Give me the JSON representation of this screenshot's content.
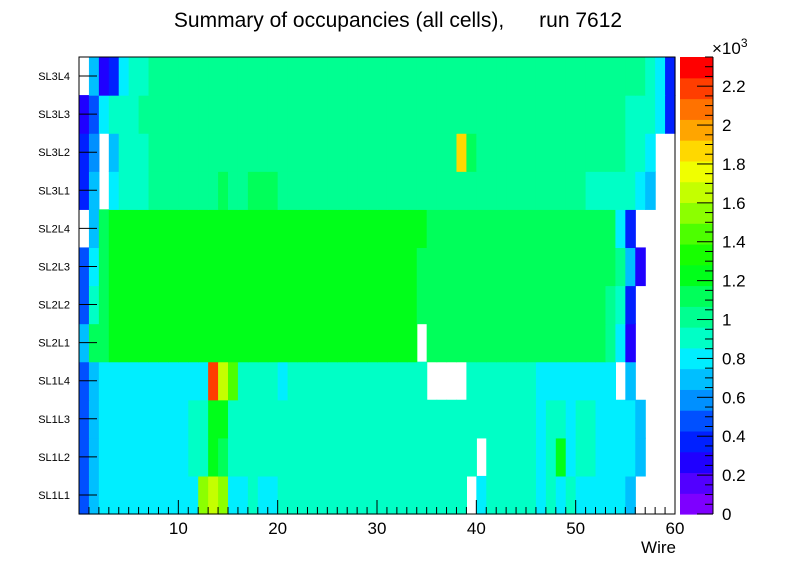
{
  "chart_data": {
    "type": "heatmap",
    "title": "Summary of occupancies (all cells),      run 7612",
    "xlabel": "Wire",
    "ylabel": "",
    "xlim": [
      0,
      60
    ],
    "x_ticks": [
      10,
      20,
      30,
      40,
      50,
      60
    ],
    "y_categories": [
      "SL1L1",
      "SL1L2",
      "SL1L3",
      "SL1L4",
      "SL2L1",
      "SL2L2",
      "SL2L3",
      "SL2L4",
      "SL3L1",
      "SL3L2",
      "SL3L3",
      "SL3L4"
    ],
    "colorbar": {
      "range": [
        0,
        2350
      ],
      "exponent_label": "×10",
      "exponent_power": "3",
      "tick_labels": [
        "0",
        "0.2",
        "0.4",
        "0.6",
        "0.8",
        "1",
        "1.2",
        "1.4",
        "1.6",
        "1.8",
        "2",
        "2.2"
      ],
      "tick_values": [
        0,
        200,
        400,
        600,
        800,
        1000,
        1200,
        1400,
        1600,
        1800,
        2000,
        2200
      ]
    },
    "values": [
      [
        450,
        700,
        780,
        780,
        800,
        800,
        800,
        850,
        850,
        850,
        850,
        800,
        1550,
        1650,
        1500,
        850,
        850,
        900,
        850,
        850,
        900,
        900,
        900,
        900,
        900,
        900,
        900,
        900,
        900,
        900,
        900,
        900,
        900,
        900,
        900,
        900,
        900,
        900,
        900,
        0,
        850,
        900,
        900,
        900,
        900,
        900,
        850,
        900,
        850,
        900,
        850,
        800,
        780,
        780,
        780,
        650,
        0,
        0,
        0,
        0
      ],
      [
        450,
        700,
        780,
        780,
        800,
        800,
        800,
        850,
        850,
        850,
        850,
        900,
        900,
        1200,
        1150,
        900,
        900,
        950,
        900,
        900,
        950,
        900,
        900,
        900,
        900,
        900,
        900,
        900,
        900,
        900,
        900,
        900,
        900,
        900,
        900,
        900,
        900,
        900,
        900,
        900,
        0,
        900,
        900,
        900,
        900,
        900,
        850,
        900,
        1200,
        850,
        900,
        900,
        850,
        850,
        800,
        800,
        700,
        0,
        0,
        0
      ],
      [
        450,
        700,
        780,
        780,
        800,
        800,
        800,
        850,
        850,
        850,
        850,
        900,
        950,
        1200,
        1250,
        900,
        900,
        950,
        900,
        900,
        950,
        900,
        900,
        900,
        900,
        900,
        900,
        900,
        900,
        900,
        900,
        900,
        900,
        900,
        900,
        900,
        900,
        900,
        900,
        900,
        900,
        900,
        900,
        900,
        900,
        900,
        850,
        900,
        900,
        850,
        900,
        900,
        850,
        850,
        800,
        800,
        700,
        0,
        0,
        0
      ],
      [
        450,
        650,
        780,
        780,
        800,
        850,
        850,
        850,
        850,
        850,
        850,
        850,
        850,
        2200,
        1650,
        1400,
        950,
        950,
        900,
        900,
        850,
        900,
        900,
        900,
        900,
        900,
        900,
        900,
        900,
        900,
        900,
        900,
        900,
        900,
        900,
        0,
        0,
        0,
        0,
        900,
        900,
        900,
        900,
        900,
        900,
        900,
        850,
        800,
        800,
        800,
        800,
        800,
        800,
        850,
        0,
        700,
        0,
        0,
        0,
        0
      ],
      [
        700,
        1100,
        1150,
        1200,
        1200,
        1200,
        1200,
        1200,
        1200,
        1200,
        1200,
        1200,
        1200,
        1200,
        1200,
        1200,
        1200,
        1200,
        1200,
        1200,
        1200,
        1200,
        1200,
        1200,
        1200,
        1200,
        1200,
        1200,
        1200,
        1200,
        1200,
        1200,
        1200,
        1200,
        0,
        1150,
        1150,
        1150,
        1150,
        1150,
        1150,
        1150,
        1150,
        1150,
        1150,
        1150,
        1150,
        1150,
        1150,
        1150,
        1150,
        1150,
        1150,
        1050,
        800,
        300,
        0,
        0,
        0,
        0
      ],
      [
        500,
        950,
        1150,
        1200,
        1200,
        1200,
        1200,
        1200,
        1200,
        1200,
        1200,
        1200,
        1200,
        1200,
        1200,
        1200,
        1200,
        1200,
        1200,
        1200,
        1200,
        1200,
        1200,
        1200,
        1200,
        1200,
        1200,
        1200,
        1200,
        1200,
        1200,
        1200,
        1200,
        1200,
        1100,
        1150,
        1150,
        1150,
        1150,
        1150,
        1150,
        1150,
        1150,
        1150,
        1150,
        1150,
        1150,
        1150,
        1150,
        1150,
        1150,
        1150,
        1150,
        1050,
        900,
        350,
        0,
        0,
        0,
        0
      ],
      [
        450,
        850,
        1150,
        1200,
        1200,
        1200,
        1200,
        1200,
        1200,
        1200,
        1200,
        1200,
        1200,
        1200,
        1200,
        1200,
        1200,
        1200,
        1200,
        1200,
        1200,
        1200,
        1200,
        1200,
        1200,
        1200,
        1200,
        1200,
        1200,
        1200,
        1200,
        1200,
        1200,
        1200,
        1100,
        1150,
        1150,
        1150,
        1150,
        1150,
        1150,
        1150,
        1150,
        1150,
        1150,
        1150,
        1150,
        1150,
        1150,
        1150,
        1150,
        1150,
        1150,
        1100,
        1050,
        650,
        300,
        0,
        0,
        0
      ],
      [
        0,
        700,
        1150,
        1200,
        1200,
        1200,
        1200,
        1200,
        1200,
        1200,
        1200,
        1200,
        1200,
        1200,
        1200,
        1200,
        1200,
        1200,
        1200,
        1200,
        1200,
        1200,
        1200,
        1200,
        1200,
        1200,
        1200,
        1200,
        1200,
        1200,
        1200,
        1200,
        1200,
        1200,
        1200,
        1150,
        1150,
        1150,
        1150,
        1150,
        1150,
        1150,
        1150,
        1150,
        1150,
        1150,
        1150,
        1150,
        1150,
        1150,
        1150,
        1150,
        1150,
        1150,
        850,
        350,
        0,
        0,
        0,
        0
      ],
      [
        350,
        700,
        0,
        850,
        900,
        900,
        950,
        1000,
        1000,
        1000,
        1000,
        1000,
        1050,
        1050,
        1100,
        1000,
        1000,
        1100,
        1100,
        1150,
        1050,
        1000,
        1000,
        1000,
        1000,
        1000,
        1000,
        1000,
        1000,
        1000,
        1000,
        1000,
        1000,
        1000,
        1000,
        1050,
        1050,
        1000,
        1000,
        1000,
        1000,
        1000,
        1000,
        1000,
        1000,
        1000,
        1000,
        1000,
        1000,
        1000,
        1000,
        950,
        950,
        950,
        950,
        900,
        800,
        650,
        0,
        0
      ],
      [
        350,
        600,
        0,
        700,
        900,
        900,
        950,
        1000,
        1050,
        1000,
        1050,
        1000,
        1000,
        1000,
        1000,
        1000,
        1000,
        1000,
        1000,
        1000,
        1000,
        1000,
        1000,
        1000,
        1000,
        1000,
        1000,
        1000,
        1000,
        1000,
        1000,
        1000,
        1000,
        1000,
        1000,
        1000,
        1000,
        1000,
        1850,
        1100,
        1000,
        1000,
        1000,
        1000,
        1000,
        1000,
        1000,
        1000,
        1000,
        1000,
        1000,
        1000,
        1000,
        1000,
        1000,
        950,
        900,
        750,
        0,
        0
      ],
      [
        250,
        450,
        800,
        900,
        900,
        950,
        1000,
        1000,
        1000,
        1000,
        1000,
        1000,
        1000,
        1000,
        1000,
        1000,
        1000,
        1050,
        1000,
        1000,
        1000,
        1000,
        1050,
        1000,
        1000,
        1050,
        1050,
        1050,
        1000,
        1050,
        1000,
        1000,
        1000,
        1000,
        1000,
        1000,
        1000,
        1000,
        1000,
        1000,
        1050,
        1000,
        1000,
        1000,
        1000,
        1000,
        1000,
        1000,
        1000,
        1000,
        1000,
        1000,
        1000,
        1000,
        1000,
        950,
        950,
        900,
        800,
        350
      ],
      [
        0,
        650,
        300,
        350,
        850,
        950,
        950,
        1000,
        1000,
        1000,
        1000,
        1000,
        1000,
        1000,
        1000,
        1000,
        1000,
        1000,
        1000,
        1000,
        1000,
        1000,
        1000,
        1000,
        1000,
        1000,
        1000,
        1000,
        1000,
        1000,
        1000,
        1000,
        1000,
        1000,
        1000,
        1000,
        1000,
        1000,
        1000,
        1000,
        1000,
        1000,
        1000,
        1000,
        1050,
        1000,
        1000,
        1000,
        1000,
        1000,
        1000,
        1000,
        1000,
        1000,
        1000,
        1000,
        1000,
        900,
        750,
        350
      ]
    ]
  }
}
